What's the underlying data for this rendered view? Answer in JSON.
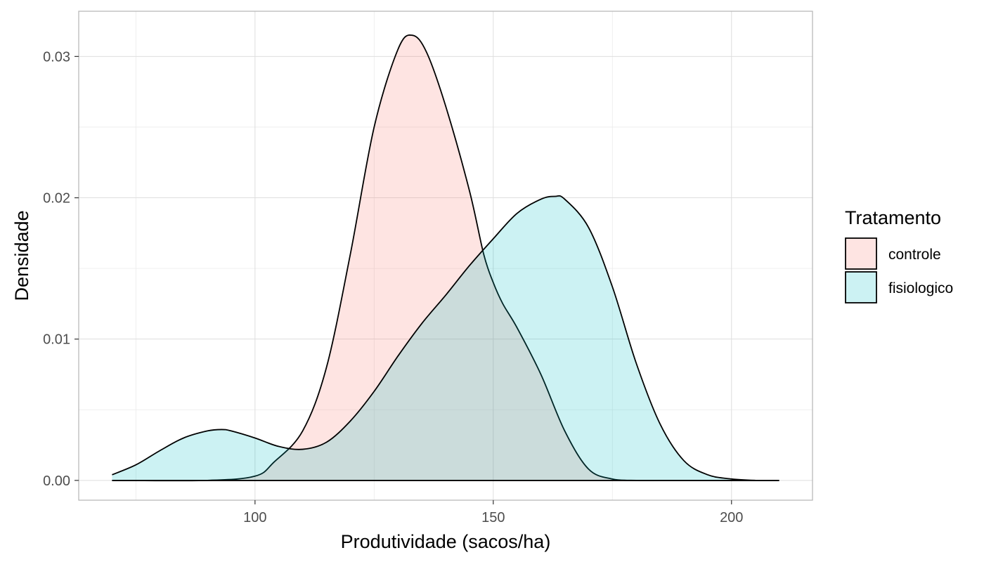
{
  "chart_data": {
    "type": "area",
    "subtype": "density",
    "title": "",
    "xlabel": "Produtividade (sacos/ha)",
    "ylabel": "Densidade",
    "xlim": [
      63,
      217
    ],
    "ylim": [
      -0.0014,
      0.0332
    ],
    "x_ticks": [
      {
        "value": 100,
        "label": "100"
      },
      {
        "value": 150,
        "label": "150"
      },
      {
        "value": 200,
        "label": "200"
      }
    ],
    "y_ticks": [
      {
        "value": 0.0,
        "label": "0.00"
      },
      {
        "value": 0.01,
        "label": "0.01"
      },
      {
        "value": 0.02,
        "label": "0.02"
      },
      {
        "value": 0.03,
        "label": "0.03"
      }
    ],
    "x_minor": [
      75,
      125,
      175
    ],
    "y_minor": [
      0.005,
      0.015,
      0.025
    ],
    "grid": true,
    "legend": {
      "title": "Tratamento",
      "position": "right"
    },
    "series": [
      {
        "name": "controle",
        "color": "#F8766D",
        "x": [
          70,
          90,
          100,
          104,
          110,
          115,
          120,
          125,
          130,
          133,
          136,
          140,
          145,
          148,
          150,
          152,
          155,
          160,
          165,
          170,
          175,
          180,
          185,
          190,
          200,
          210
        ],
        "values": [
          0,
          0,
          0.0003,
          0.0013,
          0.0035,
          0.008,
          0.016,
          0.025,
          0.0305,
          0.0315,
          0.0303,
          0.0265,
          0.0205,
          0.016,
          0.014,
          0.0125,
          0.0108,
          0.0075,
          0.0035,
          0.0008,
          0.0001,
          0,
          0,
          0,
          0,
          0
        ]
      },
      {
        "name": "fisiologico",
        "color": "#00BFC4",
        "x": [
          70,
          75,
          80,
          85,
          90,
          93,
          95,
          100,
          105,
          110,
          115,
          120,
          125,
          130,
          135,
          140,
          145,
          150,
          155,
          160,
          163,
          165,
          170,
          175,
          180,
          185,
          190,
          195,
          200,
          205,
          210
        ],
        "values": [
          0.0004,
          0.0011,
          0.0021,
          0.003,
          0.0035,
          0.0036,
          0.0035,
          0.003,
          0.0024,
          0.0022,
          0.0027,
          0.0042,
          0.0063,
          0.0088,
          0.0111,
          0.0131,
          0.0152,
          0.0171,
          0.0189,
          0.0199,
          0.0201,
          0.0199,
          0.0179,
          0.0137,
          0.0083,
          0.004,
          0.0014,
          0.0004,
          0.0001,
          0,
          0
        ]
      }
    ]
  }
}
